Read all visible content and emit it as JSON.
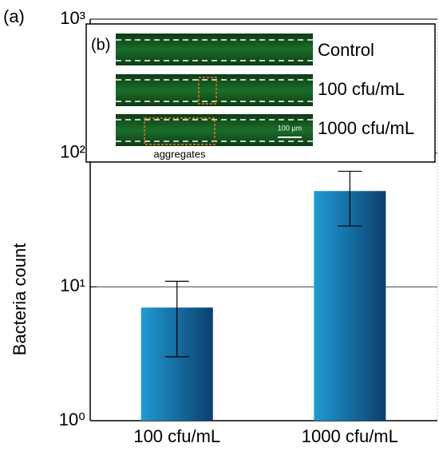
{
  "chart_data": {
    "type": "bar",
    "panel_label": "(a)",
    "y_label": "Bacteria count",
    "categories": [
      "100 cfu/mL",
      "1000 cfu/mL"
    ],
    "values": [
      7,
      52
    ],
    "lower": [
      3,
      28.5
    ],
    "upper": [
      11,
      73
    ],
    "color_light": "#1f9bd4",
    "color_dark": "#0b3f6e",
    "log_scale": true,
    "ylim": [
      1,
      1000
    ],
    "yticks": [
      {
        "value": 1,
        "label": "10⁰"
      },
      {
        "value": 10,
        "label": "10¹"
      },
      {
        "value": 100,
        "label": "10²"
      },
      {
        "value": 1000,
        "label": "10³"
      }
    ],
    "grid": true
  },
  "inset": {
    "label": "(b)",
    "rows": [
      "Control",
      "100 cfu/mL",
      "1000 cfu/mL"
    ],
    "scale_bar": "100 µm",
    "annotation": "aggregates"
  }
}
